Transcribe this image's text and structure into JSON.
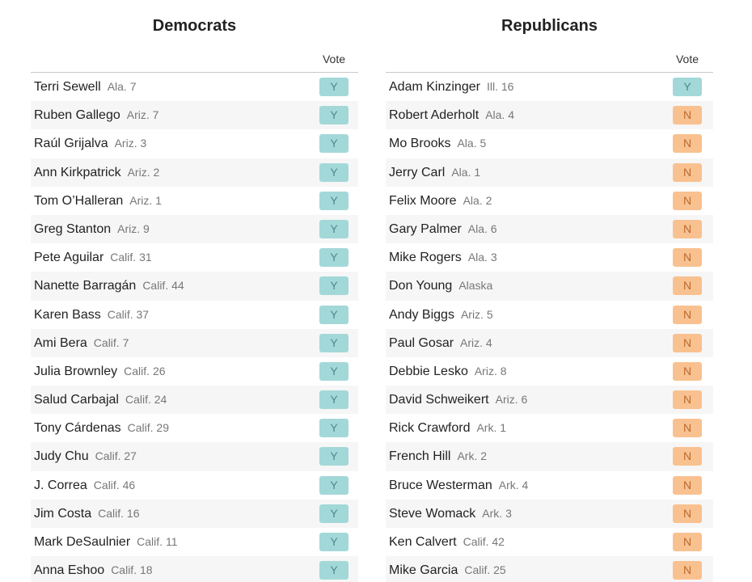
{
  "colors": {
    "yes": "#a3d8d9",
    "no": "#f9c190"
  },
  "democrats": {
    "title": "Democrats",
    "vote_header": "Vote",
    "rows": [
      {
        "name": "Terri Sewell",
        "district": "Ala. 7",
        "vote": "Y"
      },
      {
        "name": "Ruben Gallego",
        "district": "Ariz. 7",
        "vote": "Y"
      },
      {
        "name": "Raúl Grijalva",
        "district": "Ariz. 3",
        "vote": "Y"
      },
      {
        "name": "Ann Kirkpatrick",
        "district": "Ariz. 2",
        "vote": "Y"
      },
      {
        "name": "Tom O’Halleran",
        "district": "Ariz. 1",
        "vote": "Y"
      },
      {
        "name": "Greg Stanton",
        "district": "Ariz. 9",
        "vote": "Y"
      },
      {
        "name": "Pete Aguilar",
        "district": "Calif. 31",
        "vote": "Y"
      },
      {
        "name": "Nanette Barragán",
        "district": "Calif. 44",
        "vote": "Y"
      },
      {
        "name": "Karen Bass",
        "district": "Calif. 37",
        "vote": "Y"
      },
      {
        "name": "Ami Bera",
        "district": "Calif. 7",
        "vote": "Y"
      },
      {
        "name": "Julia Brownley",
        "district": "Calif. 26",
        "vote": "Y"
      },
      {
        "name": "Salud Carbajal",
        "district": "Calif. 24",
        "vote": "Y"
      },
      {
        "name": "Tony Cárdenas",
        "district": "Calif. 29",
        "vote": "Y"
      },
      {
        "name": "Judy Chu",
        "district": "Calif. 27",
        "vote": "Y"
      },
      {
        "name": "J. Correa",
        "district": "Calif. 46",
        "vote": "Y"
      },
      {
        "name": "Jim Costa",
        "district": "Calif. 16",
        "vote": "Y"
      },
      {
        "name": "Mark DeSaulnier",
        "district": "Calif. 11",
        "vote": "Y"
      },
      {
        "name": "Anna Eshoo",
        "district": "Calif. 18",
        "vote": "Y"
      }
    ]
  },
  "republicans": {
    "title": "Republicans",
    "vote_header": "Vote",
    "rows": [
      {
        "name": "Adam Kinzinger",
        "district": "Ill. 16",
        "vote": "Y"
      },
      {
        "name": "Robert Aderholt",
        "district": "Ala. 4",
        "vote": "N"
      },
      {
        "name": "Mo Brooks",
        "district": "Ala. 5",
        "vote": "N"
      },
      {
        "name": "Jerry Carl",
        "district": "Ala. 1",
        "vote": "N"
      },
      {
        "name": "Felix Moore",
        "district": "Ala. 2",
        "vote": "N"
      },
      {
        "name": "Gary Palmer",
        "district": "Ala. 6",
        "vote": "N"
      },
      {
        "name": "Mike Rogers",
        "district": "Ala. 3",
        "vote": "N"
      },
      {
        "name": "Don Young",
        "district": "Alaska",
        "vote": "N"
      },
      {
        "name": "Andy Biggs",
        "district": "Ariz. 5",
        "vote": "N"
      },
      {
        "name": "Paul Gosar",
        "district": "Ariz. 4",
        "vote": "N"
      },
      {
        "name": "Debbie Lesko",
        "district": "Ariz. 8",
        "vote": "N"
      },
      {
        "name": "David Schweikert",
        "district": "Ariz. 6",
        "vote": "N"
      },
      {
        "name": "Rick Crawford",
        "district": "Ark. 1",
        "vote": "N"
      },
      {
        "name": "French Hill",
        "district": "Ark. 2",
        "vote": "N"
      },
      {
        "name": "Bruce Westerman",
        "district": "Ark. 4",
        "vote": "N"
      },
      {
        "name": "Steve Womack",
        "district": "Ark. 3",
        "vote": "N"
      },
      {
        "name": "Ken Calvert",
        "district": "Calif. 42",
        "vote": "N"
      },
      {
        "name": "Mike Garcia",
        "district": "Calif. 25",
        "vote": "N"
      }
    ]
  }
}
